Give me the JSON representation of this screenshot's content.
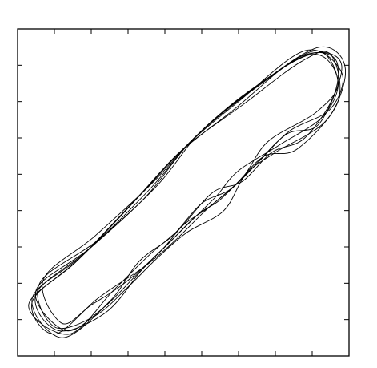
{
  "chart_data": {
    "type": "line",
    "title": "",
    "xlabel": "",
    "ylabel": "",
    "xlim": [
      0,
      9
    ],
    "ylim": [
      0,
      9
    ],
    "ticks_labeled": false,
    "grid": false,
    "legend": "none",
    "x_ticks": [
      1,
      2,
      3,
      4,
      5,
      6,
      7,
      8
    ],
    "y_ticks": [
      1,
      2,
      3,
      4,
      5,
      6,
      7,
      8
    ],
    "colors": {
      "line": "#000000",
      "frame": "#000000"
    },
    "series": [
      {
        "x": [
          0.5,
          2.0,
          3.6,
          4.8,
          6.3,
          8.0,
          8.7,
          8.3,
          7.1,
          6.0,
          5.4,
          4.8,
          4.0,
          3.2,
          2.3,
          1.3,
          0.5
        ],
        "y": [
          1.8,
          3.0,
          4.6,
          6.0,
          7.3,
          8.3,
          7.6,
          6.6,
          5.8,
          5.1,
          4.4,
          3.8,
          3.0,
          2.2,
          1.3,
          0.7,
          1.8
        ]
      },
      {
        "x": [
          0.4,
          1.8,
          3.4,
          4.6,
          6.0,
          7.8,
          8.8,
          8.5,
          7.4,
          6.6,
          5.8,
          5.0,
          4.2,
          3.3,
          2.5,
          1.2,
          0.4
        ],
        "y": [
          1.6,
          2.8,
          4.5,
          5.8,
          7.0,
          8.4,
          7.8,
          6.8,
          6.2,
          5.4,
          4.6,
          4.2,
          3.3,
          2.6,
          1.5,
          0.5,
          1.6
        ]
      },
      {
        "x": [
          0.6,
          2.2,
          3.8,
          5.0,
          6.6,
          8.2,
          8.9,
          8.4,
          7.0,
          6.2,
          5.6,
          4.6,
          3.8,
          3.0,
          2.1,
          1.0,
          0.6
        ],
        "y": [
          2.0,
          3.2,
          4.7,
          6.2,
          7.5,
          8.5,
          7.9,
          6.5,
          5.6,
          5.0,
          4.0,
          3.4,
          2.7,
          1.9,
          1.1,
          0.8,
          2.0
        ]
      },
      {
        "x": [
          0.3,
          1.6,
          3.2,
          4.4,
          5.9,
          7.6,
          8.6,
          8.6,
          7.8,
          6.9,
          6.1,
          5.3,
          4.4,
          3.6,
          2.6,
          1.4,
          0.3
        ],
        "y": [
          1.4,
          2.6,
          4.3,
          5.6,
          6.8,
          8.2,
          8.2,
          7.2,
          6.0,
          5.6,
          4.8,
          4.5,
          3.5,
          2.8,
          1.8,
          0.6,
          1.4
        ]
      },
      {
        "x": [
          0.5,
          1.9,
          3.5,
          4.7,
          6.2,
          7.9,
          8.8,
          8.2,
          7.3,
          6.4,
          5.5,
          4.9,
          4.1,
          3.4,
          2.4,
          1.1,
          0.5
        ],
        "y": [
          1.7,
          2.9,
          4.4,
          5.9,
          7.2,
          8.3,
          8.0,
          6.4,
          6.1,
          5.2,
          4.3,
          3.9,
          3.1,
          2.4,
          1.2,
          0.7,
          1.7
        ]
      },
      {
        "x": [
          0.7,
          2.1,
          3.7,
          4.9,
          6.5,
          8.1,
          8.7,
          8.1,
          6.8,
          6.1,
          5.2,
          4.5,
          3.9,
          2.9,
          2.0,
          1.2,
          0.7
        ],
        "y": [
          2.1,
          3.3,
          4.8,
          6.1,
          7.4,
          8.4,
          7.5,
          6.7,
          5.9,
          4.9,
          4.1,
          3.6,
          2.9,
          2.0,
          1.4,
          0.9,
          2.1
        ]
      },
      {
        "x": [
          0.4,
          1.7,
          3.3,
          4.5,
          6.1,
          7.7,
          8.5,
          8.7,
          7.6,
          6.7,
          5.9,
          5.1,
          4.3,
          3.5,
          2.2,
          1.0,
          0.4
        ],
        "y": [
          1.5,
          2.7,
          4.4,
          5.7,
          6.9,
          8.1,
          8.3,
          7.0,
          5.7,
          5.5,
          4.7,
          4.0,
          3.2,
          2.5,
          1.6,
          0.6,
          1.5
        ]
      }
    ]
  }
}
